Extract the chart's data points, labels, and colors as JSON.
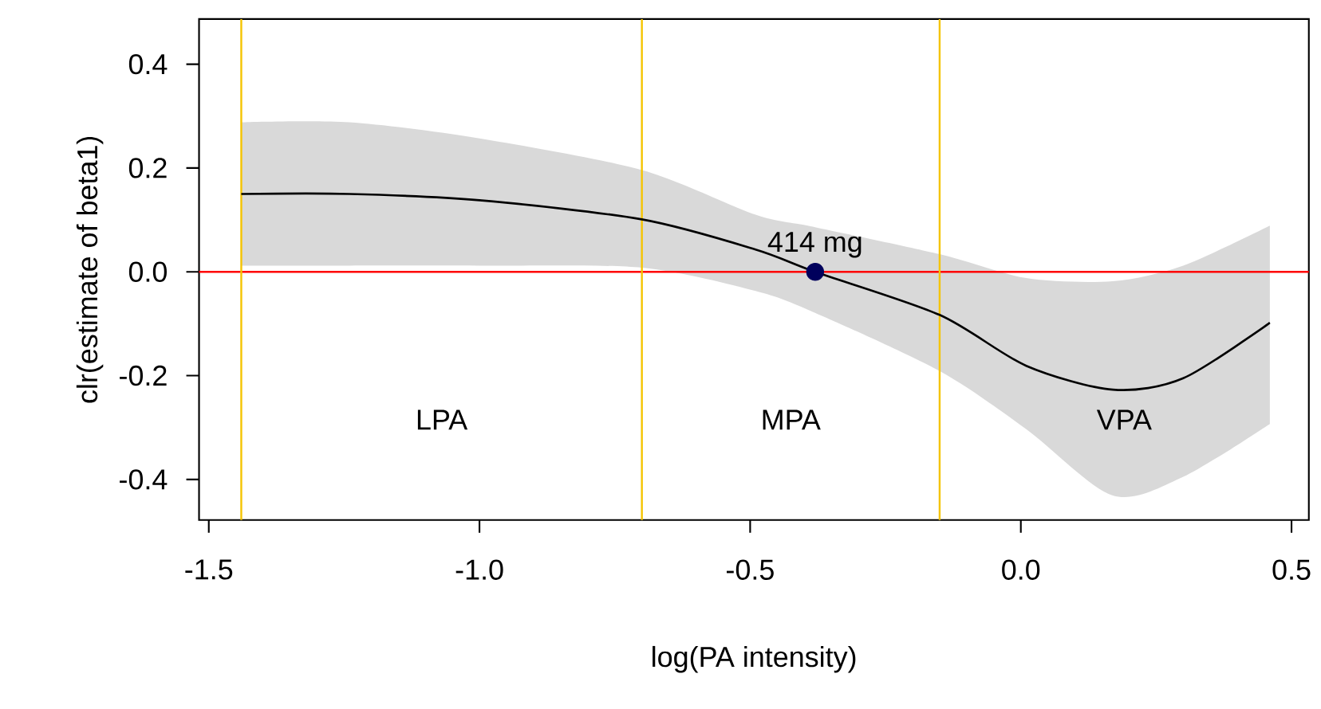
{
  "chart_data": {
    "type": "line",
    "xlabel": "log(PA intensity)",
    "ylabel": "clr(estimate of beta1)",
    "xlim": [
      -1.518,
      0.532
    ],
    "ylim": [
      -0.478,
      0.487
    ],
    "xticks": [
      -1.5,
      {
        "value": -1.0,
        "label": "-1.0"
      },
      -0.5,
      {
        "value": 0.0,
        "label": "0.0"
      },
      0.5
    ],
    "yticks": [
      0.4,
      0.2,
      {
        "value": 0.0,
        "label": "0.0"
      },
      -0.2,
      -0.4
    ],
    "series": [
      {
        "color": "#000000",
        "x": [
          -1.44,
          -1.24,
          -1.0,
          -0.7,
          -0.49,
          -0.38,
          -0.15,
          0.01,
          0.17,
          0.3,
          0.46
        ],
        "values": [
          0.15,
          0.15,
          0.138,
          0.101,
          0.043,
          0.0,
          -0.083,
          -0.181,
          -0.227,
          -0.205,
          -0.098
        ],
        "upper": [
          0.288,
          0.288,
          0.257,
          0.196,
          0.11,
          0.086,
          0.034,
          -0.012,
          -0.018,
          0.012,
          0.089
        ],
        "lower": [
          0.012,
          0.012,
          0.012,
          0.008,
          -0.037,
          -0.079,
          -0.191,
          -0.303,
          -0.431,
          -0.395,
          -0.293
        ]
      },
      {
        "type": "scatter",
        "color": "#00005c",
        "marker": "circle",
        "x": [
          -0.38
        ],
        "values": [
          0.0
        ]
      }
    ],
    "ref_lines": [
      {
        "axis": "y",
        "value": 0.0,
        "color": "#ff0000"
      },
      {
        "axis": "x",
        "value": -1.44,
        "color": "#f5c400"
      },
      {
        "axis": "x",
        "value": -0.7,
        "color": "#f5c400"
      },
      {
        "axis": "x",
        "value": -0.15,
        "color": "#f5c400"
      }
    ],
    "annotations": [
      {
        "text": "414 mg",
        "x": -0.38,
        "y": 0.0
      },
      "LPA",
      "MPA",
      "VPA"
    ]
  }
}
